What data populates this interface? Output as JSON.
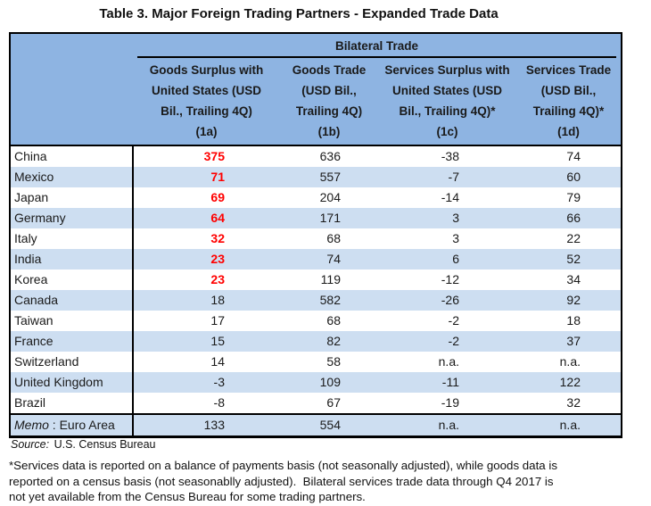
{
  "title": "Table 3. Major Foreign Trading Partners - Expanded Trade Data",
  "table": {
    "group_header": "Bilateral Trade",
    "col_headers": [
      "Goods Surplus with\nUnited States (USD\nBil., Trailing 4Q)\n(1a)",
      "Goods Trade\n(USD Bil.,\nTrailing 4Q)\n(1b)",
      "Services Surplus with\nUnited States (USD\nBil., Trailing 4Q)*\n(1c)",
      "Services Trade\n(USD Bil.,\nTrailing 4Q)*\n(1d)"
    ],
    "rows": [
      {
        "name": "China",
        "v1": "375",
        "v2": "636",
        "v3": "-38",
        "v4": "74"
      },
      {
        "name": "Mexico",
        "v1": "71",
        "v2": "557",
        "v3": "-7",
        "v4": "60"
      },
      {
        "name": "Japan",
        "v1": "69",
        "v2": "204",
        "v3": "-14",
        "v4": "79"
      },
      {
        "name": "Germany",
        "v1": "64",
        "v2": "171",
        "v3": "3",
        "v4": "66"
      },
      {
        "name": "Italy",
        "v1": "32",
        "v2": "68",
        "v3": "3",
        "v4": "22"
      },
      {
        "name": "India",
        "v1": "23",
        "v2": "74",
        "v3": "6",
        "v4": "52"
      },
      {
        "name": "Korea",
        "v1": "23",
        "v2": "119",
        "v3": "-12",
        "v4": "34"
      },
      {
        "name": "Canada",
        "v1": "18",
        "v2": "582",
        "v3": "-26",
        "v4": "92"
      },
      {
        "name": "Taiwan",
        "v1": "17",
        "v2": "68",
        "v3": "-2",
        "v4": "18"
      },
      {
        "name": "France",
        "v1": "15",
        "v2": "82",
        "v3": "-2",
        "v4": "37"
      },
      {
        "name": "Switzerland",
        "v1": "14",
        "v2": "58",
        "v3": "n.a.",
        "v4": "n.a."
      },
      {
        "name": "United Kingdom",
        "v1": "-3",
        "v2": "109",
        "v3": "-11",
        "v4": "122"
      },
      {
        "name": "Brazil",
        "v1": "-8",
        "v2": "67",
        "v3": "-19",
        "v4": "32"
      }
    ],
    "memo_row": {
      "label_italic": "Memo",
      "label_rest": " : Euro Area",
      "v1": "133",
      "v2": "554",
      "v3": "n.a.",
      "v4": "n.a."
    }
  },
  "source_line": {
    "label_italic": "Source:",
    "text": " U.S. Census Bureau"
  },
  "footnote": "*Services data is reported on a balance of payments basis (not seasonally adjusted), while goods data is\nreported on a census basis (not seasonablly adjusted).  Bilateral services trade data through Q4 2017 is\nnot yet available from the Census Bureau for some trading partners.",
  "colors": {
    "header_blue": "#8EB4E2",
    "stripe_blue": "#CDDEF1",
    "highlight_red": "#FF0000",
    "border_black": "#000000"
  }
}
